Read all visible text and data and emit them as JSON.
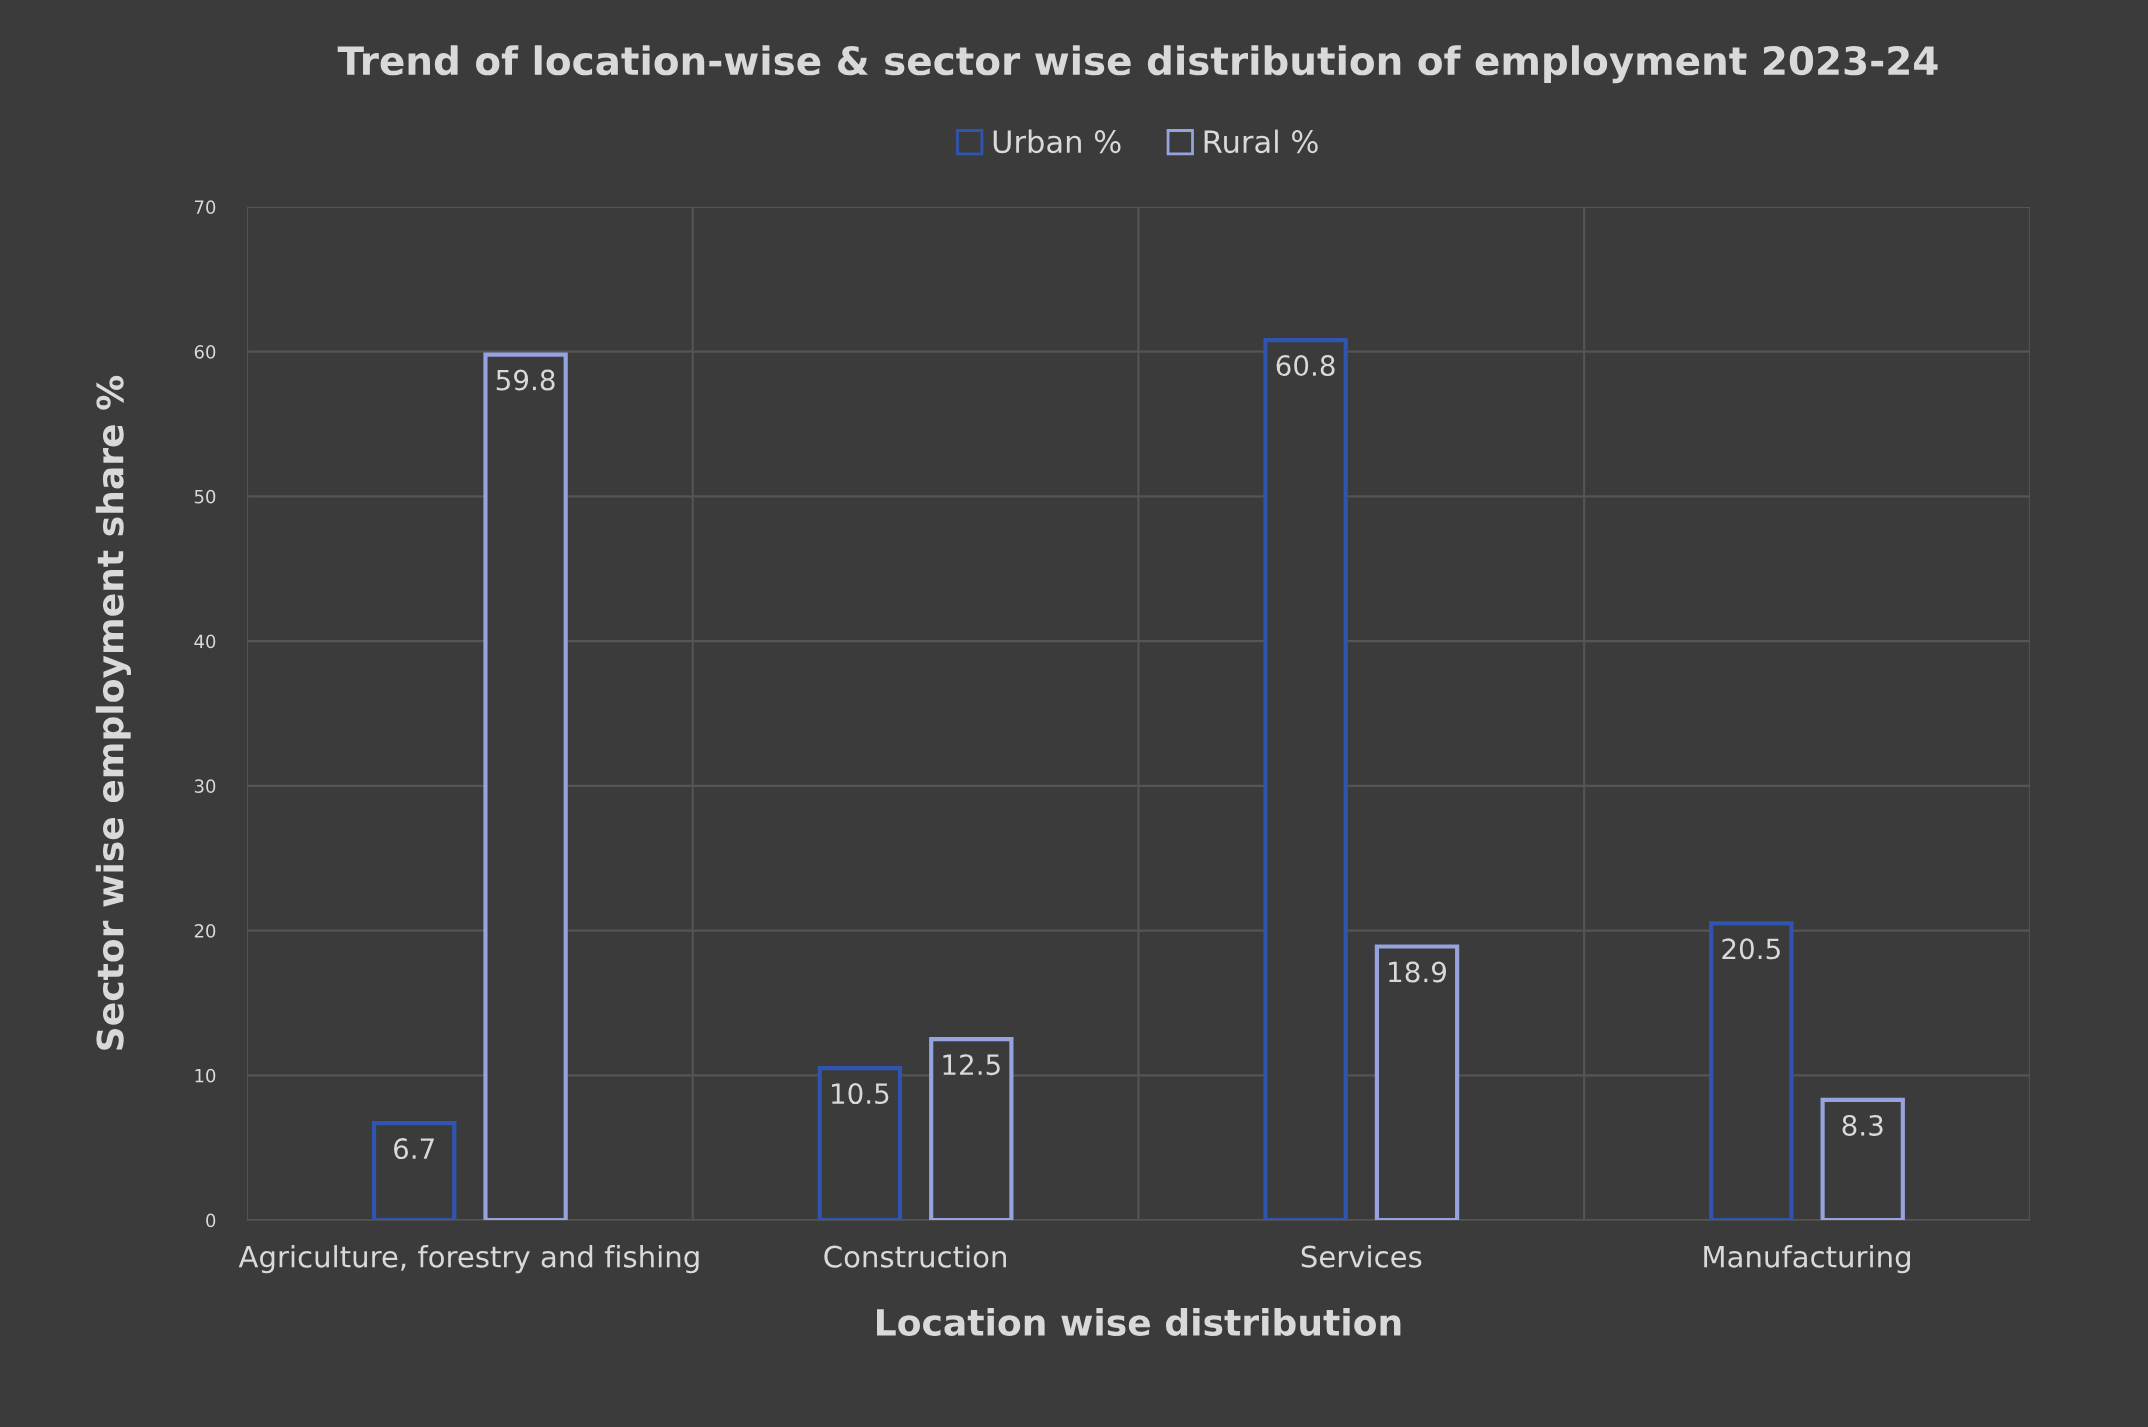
{
  "chart_data": {
    "type": "bar",
    "title": "Trend of location-wise & sector wise distribution of employment 2023-24",
    "xlabel": "Location wise distribution",
    "ylabel": "Sector wise employment share %",
    "categories": [
      "Agriculture, forestry and fishing",
      "Construction",
      "Services",
      "Manufacturing"
    ],
    "series": [
      {
        "name": "Urban %",
        "color": "#2f55b0",
        "values": [
          6.7,
          10.5,
          60.8,
          20.5
        ]
      },
      {
        "name": "Rural %",
        "color": "#95a3de",
        "values": [
          59.8,
          12.5,
          18.9,
          8.3
        ]
      }
    ],
    "ylim": [
      0,
      70
    ],
    "yticks": [
      0,
      10,
      20,
      30,
      40,
      50,
      60,
      70
    ],
    "grid": true,
    "legend": "top",
    "data_labels": true
  }
}
